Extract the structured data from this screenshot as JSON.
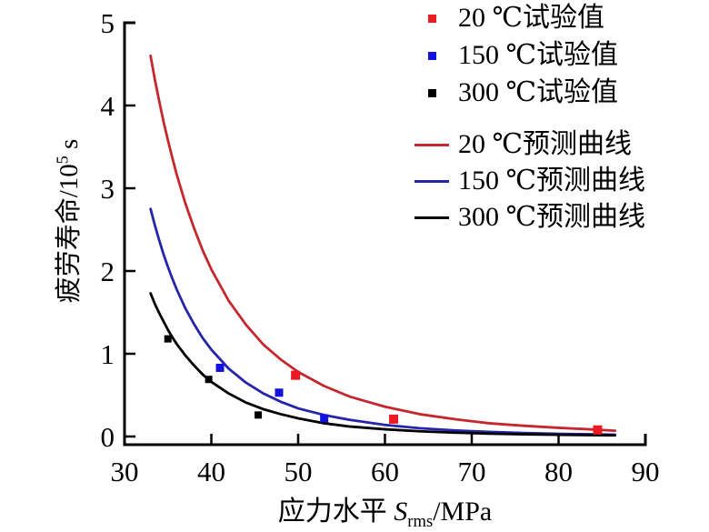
{
  "figure": {
    "background": "#ffffff",
    "y_axis_title": {
      "prefix": "疲劳寿命/10",
      "sup": "5",
      "suffix": " s"
    },
    "x_axis_title": {
      "prefix": "应力水平 ",
      "var": "S",
      "sub": "rms",
      "suffix": "/MPa"
    },
    "legend": [
      {
        "label": "20 ℃试验值",
        "marker": "square",
        "color": "#ec1b23"
      },
      {
        "label": "150 ℃试验值",
        "marker": "square",
        "color": "#1212dd"
      },
      {
        "label": "300 ℃试验值",
        "marker": "square",
        "color": "#000000"
      },
      {
        "label": "20 ℃预测曲线",
        "marker": "line",
        "color": "#c4272e"
      },
      {
        "label": "150 ℃预测曲线",
        "marker": "line",
        "color": "#2525aa"
      },
      {
        "label": "300 ℃预测曲线",
        "marker": "line",
        "color": "#000000"
      }
    ]
  },
  "chart_data": {
    "type": "line",
    "title": "",
    "xlabel": "应力水平 S_rms/MPa",
    "ylabel": "疲劳寿命/10⁵ s",
    "xlim": [
      30,
      90
    ],
    "ylim": [
      0,
      5
    ],
    "x_ticks": [
      30,
      40,
      50,
      60,
      70,
      80,
      90
    ],
    "y_ticks": [
      0,
      1,
      2,
      3,
      4,
      5
    ],
    "grid": false,
    "legend_position": "upper right outside plot, top right of figure",
    "series": [
      {
        "name": "20 ℃试验值",
        "type": "scatter",
        "color": "#ec1b23",
        "marker": "square",
        "marker_size": 10,
        "points": [
          [
            49.7,
            0.74
          ],
          [
            61,
            0.21
          ],
          [
            84.5,
            0.08
          ]
        ]
      },
      {
        "name": "150 ℃试验值",
        "type": "scatter",
        "color": "#1212dd",
        "marker": "square",
        "marker_size": 9,
        "points": [
          [
            41,
            0.83
          ],
          [
            47.8,
            0.53
          ],
          [
            53,
            0.22
          ]
        ]
      },
      {
        "name": "300 ℃试验值",
        "type": "scatter",
        "color": "#000000",
        "marker": "square",
        "marker_size": 8,
        "points": [
          [
            35,
            1.18
          ],
          [
            39.7,
            0.69
          ],
          [
            45.4,
            0.26
          ]
        ]
      },
      {
        "name": "20 ℃预测曲线",
        "type": "line",
        "color": "#c4272e",
        "points": [
          [
            33,
            4.6
          ],
          [
            33.5,
            4.31
          ],
          [
            34,
            4.05
          ],
          [
            34.5,
            3.8
          ],
          [
            35,
            3.58
          ],
          [
            35.5,
            3.37
          ],
          [
            36,
            3.17
          ],
          [
            37,
            2.82
          ],
          [
            38,
            2.52
          ],
          [
            39,
            2.25
          ],
          [
            40,
            2.02
          ],
          [
            42,
            1.64
          ],
          [
            44,
            1.35
          ],
          [
            46,
            1.11
          ],
          [
            48,
            0.93
          ],
          [
            50,
            0.78
          ],
          [
            53,
            0.61
          ],
          [
            56,
            0.48
          ],
          [
            60,
            0.36
          ],
          [
            64,
            0.27
          ],
          [
            68,
            0.21
          ],
          [
            72,
            0.16
          ],
          [
            76,
            0.13
          ],
          [
            80,
            0.105
          ],
          [
            83,
            0.09
          ],
          [
            86.5,
            0.07
          ]
        ]
      },
      {
        "name": "150 ℃预测曲线",
        "type": "line",
        "color": "#2525aa",
        "points": [
          [
            33,
            2.75
          ],
          [
            33.5,
            2.55
          ],
          [
            34,
            2.37
          ],
          [
            34.5,
            2.2
          ],
          [
            35,
            2.05
          ],
          [
            35.5,
            1.91
          ],
          [
            36,
            1.78
          ],
          [
            37,
            1.55
          ],
          [
            38,
            1.36
          ],
          [
            39,
            1.19
          ],
          [
            40,
            1.05
          ],
          [
            42,
            0.82
          ],
          [
            44,
            0.65
          ],
          [
            46,
            0.52
          ],
          [
            48,
            0.42
          ],
          [
            50,
            0.34
          ],
          [
            53,
            0.26
          ],
          [
            56,
            0.2
          ],
          [
            60,
            0.14
          ],
          [
            64,
            0.1
          ],
          [
            68,
            0.074
          ],
          [
            72,
            0.056
          ],
          [
            76,
            0.042
          ],
          [
            80,
            0.033
          ],
          [
            86.5,
            0.022
          ]
        ]
      },
      {
        "name": "300 ℃预测曲线",
        "type": "line",
        "color": "#000000",
        "points": [
          [
            33,
            1.73
          ],
          [
            33.5,
            1.6
          ],
          [
            34,
            1.49
          ],
          [
            34.5,
            1.39
          ],
          [
            35,
            1.29
          ],
          [
            35.5,
            1.2
          ],
          [
            36,
            1.12
          ],
          [
            37,
            0.98
          ],
          [
            38,
            0.86
          ],
          [
            39,
            0.75
          ],
          [
            40,
            0.66
          ],
          [
            42,
            0.52
          ],
          [
            44,
            0.41
          ],
          [
            46,
            0.33
          ],
          [
            48,
            0.27
          ],
          [
            50,
            0.22
          ],
          [
            53,
            0.16
          ],
          [
            56,
            0.12
          ],
          [
            60,
            0.087
          ],
          [
            64,
            0.063
          ],
          [
            68,
            0.047
          ],
          [
            72,
            0.035
          ],
          [
            76,
            0.027
          ],
          [
            80,
            0.021
          ],
          [
            86.5,
            0.014
          ]
        ]
      }
    ]
  }
}
